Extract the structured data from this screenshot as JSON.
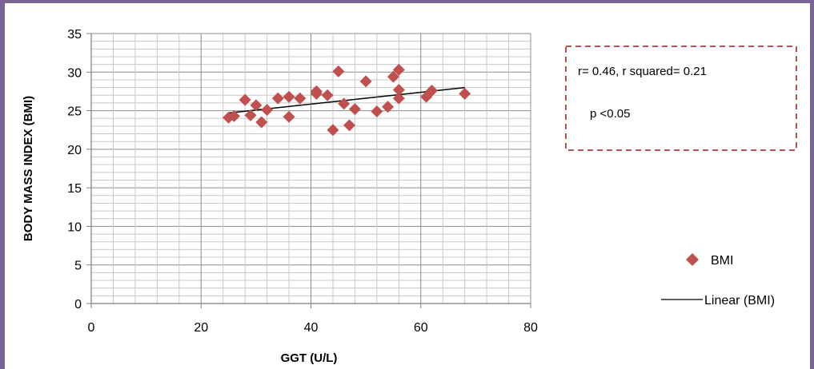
{
  "chart_data": {
    "type": "scatter",
    "title": "",
    "xlabel": "GGT (U/L)",
    "ylabel": "BODY MASS INDEX (BMI)",
    "xlim": [
      0,
      80
    ],
    "ylim": [
      0,
      35
    ],
    "x_ticks": [
      "0",
      "20",
      "40",
      "60",
      "80"
    ],
    "y_ticks": [
      "0",
      "5",
      "10",
      "15",
      "20",
      "25",
      "30",
      "35"
    ],
    "grid": true,
    "legend_position": "right",
    "series": [
      {
        "name": "BMI",
        "marker": "diamond",
        "color": "#c0504d",
        "x": [
          25,
          26,
          28,
          29,
          30,
          31,
          32,
          34,
          36,
          36,
          38,
          41,
          41,
          43,
          44,
          45,
          46,
          47,
          48,
          50,
          52,
          54,
          55,
          56,
          56,
          56,
          61,
          62,
          68
        ],
        "y": [
          24.1,
          24.3,
          26.4,
          24.4,
          25.7,
          23.5,
          25.1,
          26.6,
          26.8,
          24.2,
          26.6,
          27.5,
          27.2,
          27.0,
          22.5,
          30.1,
          25.9,
          23.1,
          25.2,
          28.8,
          24.9,
          25.5,
          29.4,
          30.3,
          27.7,
          26.6,
          26.8,
          27.6,
          27.2
        ]
      },
      {
        "name": "Linear (BMI)",
        "type": "line",
        "color": "#000000",
        "x": [
          25,
          68
        ],
        "y": [
          24.7,
          28.0
        ]
      }
    ],
    "annotation": {
      "line1": "r= 0.46, r squared= 0.21",
      "line2": "p <0.05"
    }
  }
}
